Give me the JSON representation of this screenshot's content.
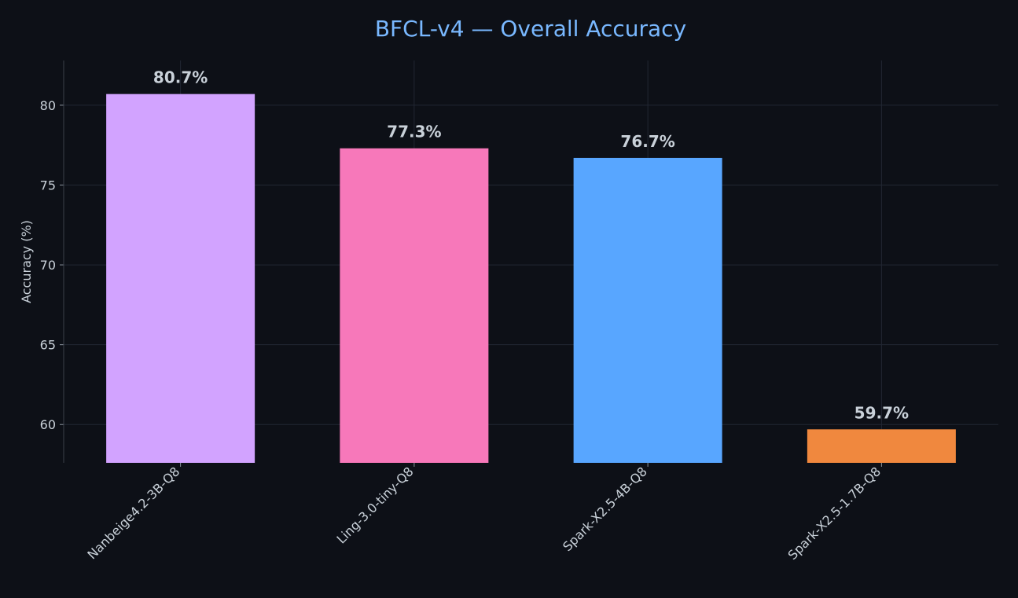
{
  "chart_data": {
    "type": "bar",
    "title": "BFCL-v4 — Overall Accuracy",
    "xlabel": "",
    "ylabel": "Accuracy (%)",
    "categories": [
      "Nanbeige4.2-3B-Q8",
      "Ling-3.0-tiny-Q8",
      "Spark-X2.5-4B-Q8",
      "Spark-X2.5-1.7B-Q8"
    ],
    "values": [
      80.7,
      77.3,
      76.7,
      59.7
    ],
    "data_labels": [
      "80.7%",
      "77.3%",
      "76.7%",
      "59.7%"
    ],
    "colors": [
      "#d2a3ff",
      "#f778ba",
      "#58a6ff",
      "#f0883e"
    ],
    "ylim": [
      57.6,
      82.8
    ],
    "yticks": [
      60,
      65,
      70,
      75,
      80
    ],
    "grid": true,
    "legend": "none"
  },
  "theme": {
    "background": "#0d1017",
    "title_color": "#79b8ff",
    "text_color": "#c9d1d9"
  }
}
